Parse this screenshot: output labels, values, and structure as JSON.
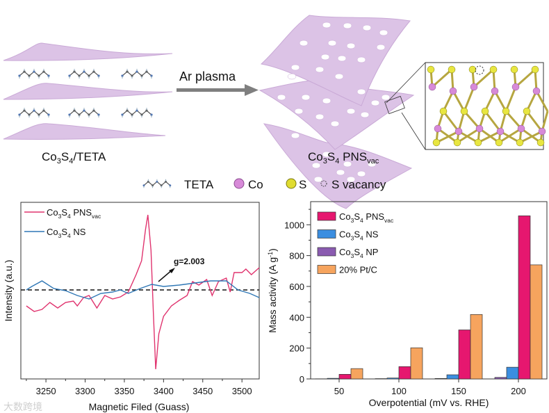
{
  "schematic": {
    "arrow_label": "Ar plasma",
    "left_label": [
      {
        "t": "Co"
      },
      {
        "t": "3",
        "sub": true
      },
      {
        "t": "S"
      },
      {
        "t": "4",
        "sub": true
      },
      {
        "t": "/TETA"
      }
    ],
    "right_label": [
      {
        "t": "Co"
      },
      {
        "t": "3",
        "sub": true
      },
      {
        "t": "S"
      },
      {
        "t": "4",
        "sub": true
      },
      {
        "t": " PNS"
      },
      {
        "t": "vac",
        "sub": true
      }
    ],
    "legend": {
      "teta": "TETA",
      "co": "Co",
      "s": "S",
      "vacancy": "S vacancy"
    },
    "colors": {
      "sheet": "#dcc3e6",
      "co": "#d78ad8",
      "s": "#e8e640"
    }
  },
  "watermark": "大数跨境",
  "chart_data": [
    {
      "type": "line",
      "title": "",
      "xlabel": "Magnetic Filed (Guass)",
      "ylabel": "Intensity (a.u.)",
      "xlim": [
        3218,
        3522
      ],
      "xticks": [
        3250,
        3300,
        3350,
        3400,
        3450,
        3500
      ],
      "annotation": "g=2.003",
      "baseline": 0,
      "legend_position": "top-left",
      "series": [
        {
          "name": [
            {
              "t": "Co"
            },
            {
              "t": "3",
              "sub": true
            },
            {
              "t": "S"
            },
            {
              "t": "4",
              "sub": true
            },
            {
              "t": " PNS"
            },
            {
              "t": "vac",
              "sub": true
            }
          ],
          "color": "#e0336e",
          "x": [
            3225,
            3235,
            3245,
            3255,
            3265,
            3275,
            3285,
            3290,
            3298,
            3305,
            3315,
            3325,
            3335,
            3345,
            3355,
            3365,
            3372,
            3377,
            3380,
            3384,
            3387,
            3390,
            3394,
            3400,
            3410,
            3420,
            3430,
            3437,
            3445,
            3455,
            3462,
            3470,
            3480,
            3485,
            3490,
            3500,
            3505,
            3512,
            3522
          ],
          "y": [
            -0.23,
            -0.31,
            -0.28,
            -0.18,
            -0.26,
            -0.18,
            -0.16,
            -0.23,
            -0.11,
            -0.08,
            -0.26,
            -0.08,
            -0.13,
            -0.1,
            -0.03,
            0.22,
            0.42,
            0.87,
            1.08,
            0.57,
            -0.33,
            -1.14,
            -0.63,
            -0.38,
            -0.23,
            -0.15,
            -0.08,
            0.12,
            0.07,
            0.15,
            -0.08,
            0.12,
            0.17,
            -0.03,
            0.25,
            0.25,
            0.3,
            0.22,
            0.32
          ]
        },
        {
          "name": [
            {
              "t": "Co"
            },
            {
              "t": "3",
              "sub": true
            },
            {
              "t": "S"
            },
            {
              "t": "4",
              "sub": true
            },
            {
              "t": " NS"
            }
          ],
          "color": "#2f77b5",
          "x": [
            3225,
            3232,
            3245,
            3260,
            3275,
            3290,
            3305,
            3320,
            3335,
            3345,
            3355,
            3370,
            3385,
            3400,
            3420,
            3440,
            3460,
            3480,
            3495,
            3510,
            3522
          ],
          "y": [
            0,
            0.05,
            0.13,
            0.02,
            -0.01,
            -0.08,
            -0.13,
            -0.05,
            -0.03,
            0,
            -0.05,
            0.02,
            0.08,
            0.05,
            0.07,
            0.1,
            0.13,
            0.13,
            0,
            -0.05,
            -0.11
          ]
        }
      ]
    },
    {
      "type": "bar",
      "title": "",
      "xlabel": "Overpotential (mV vs. RHE)",
      "ylabel": "Mass activity (A g-1)",
      "categories": [
        "50",
        "100",
        "150",
        "200"
      ],
      "ylim": [
        0,
        1150
      ],
      "yticks": [
        0,
        200,
        400,
        600,
        800,
        1000
      ],
      "legend_position": "top-left",
      "series": [
        {
          "name": [
            {
              "t": "Co"
            },
            {
              "t": "3",
              "sub": true
            },
            {
              "t": "S"
            },
            {
              "t": "4",
              "sub": true
            },
            {
              "t": " PNS"
            },
            {
              "t": "vac",
              "sub": true
            }
          ],
          "color": "#e6176f",
          "values": [
            30,
            80,
            318,
            1058
          ]
        },
        {
          "name": [
            {
              "t": "Co"
            },
            {
              "t": "3",
              "sub": true
            },
            {
              "t": "S"
            },
            {
              "t": "4",
              "sub": true
            },
            {
              "t": " NS"
            }
          ],
          "color": "#3b8ee0",
          "values": [
            4,
            6,
            27,
            76
          ]
        },
        {
          "name": [
            {
              "t": "Co"
            },
            {
              "t": "3",
              "sub": true
            },
            {
              "t": "S"
            },
            {
              "t": "4",
              "sub": true
            },
            {
              "t": " NP"
            }
          ],
          "color": "#8a5bb0",
          "values": [
            1,
            2,
            3,
            10
          ]
        },
        {
          "name": [
            {
              "t": "20% Pt/C"
            }
          ],
          "color": "#f6a45e",
          "values": [
            67,
            202,
            418,
            740
          ]
        }
      ],
      "bar_order": [
        2,
        1,
        0,
        3
      ]
    }
  ]
}
